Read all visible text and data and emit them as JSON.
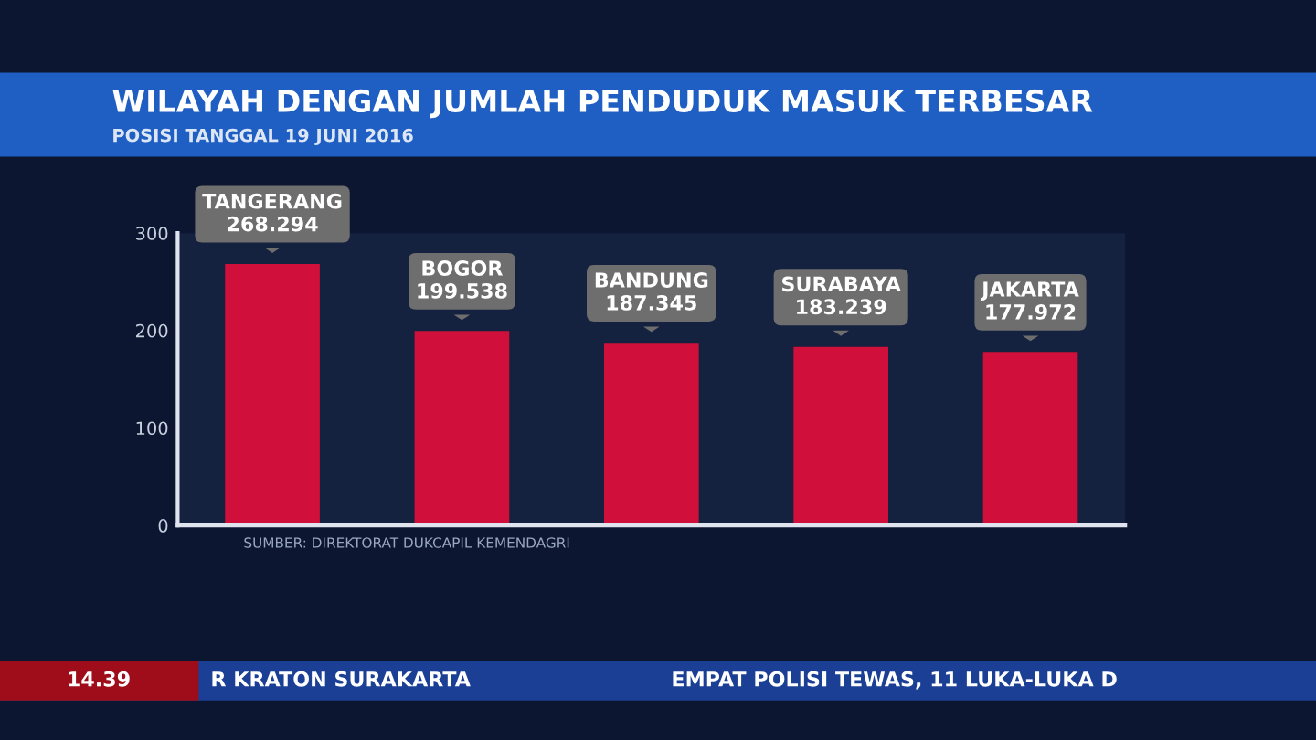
{
  "chart_data": {
    "type": "bar",
    "title": "WILAYAH DENGAN JUMLAH PENDUDUK MASUK TERBESAR",
    "subtitle": "POSISI TANGGAL 19 JUNI 2016",
    "categories": [
      "TANGERANG",
      "BOGOR",
      "BANDUNG",
      "SURABAYA",
      "JAKARTA"
    ],
    "values": [
      268.294,
      199.538,
      187.345,
      183.239,
      177.972
    ],
    "value_labels": [
      "268.294",
      "199.538",
      "187.345",
      "183.239",
      "177.972"
    ],
    "color": "#d0103a",
    "ylim": [
      0,
      300
    ],
    "yticks": [
      0,
      100,
      200,
      300
    ],
    "grid": false,
    "tick_labels": "y",
    "annotations": [
      "SUMBER: DIREKTORAT DUKCAPIL KEMENDAGRI",
      "14.39",
      "R KRATON SURAKARTA",
      "EMPAT POLISI TEWAS, 11 LUKA-LUKA D"
    ]
  }
}
